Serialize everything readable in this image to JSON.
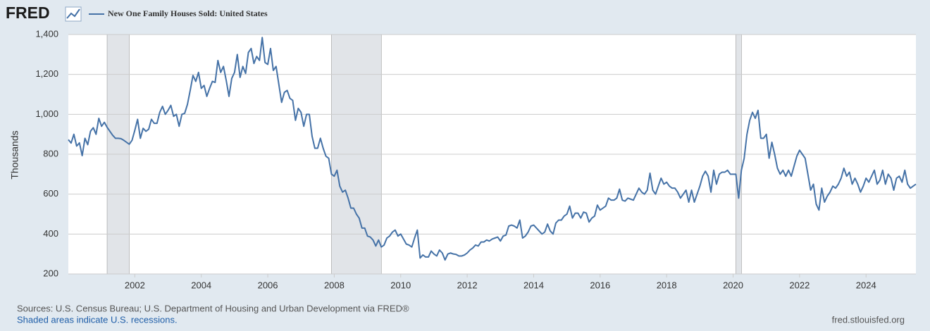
{
  "logo": "FRED",
  "chart_data": {
    "type": "line",
    "series": [
      {
        "name": "New One Family Houses Sold: United States",
        "color": "#4572a7",
        "values": [
          873,
          856,
          900,
          841,
          857,
          793,
          880,
          848,
          915,
          933,
          900,
          980,
          940,
          960,
          935,
          915,
          895,
          880,
          880,
          878,
          870,
          860,
          850,
          870,
          920,
          975,
          880,
          930,
          915,
          925,
          975,
          955,
          955,
          1010,
          1040,
          1000,
          1020,
          1045,
          990,
          1000,
          940,
          1000,
          1005,
          1050,
          1120,
          1195,
          1165,
          1210,
          1130,
          1145,
          1090,
          1130,
          1165,
          1160,
          1270,
          1210,
          1240,
          1170,
          1090,
          1180,
          1210,
          1300,
          1185,
          1240,
          1205,
          1310,
          1330,
          1255,
          1290,
          1270,
          1385,
          1260,
          1250,
          1330,
          1220,
          1240,
          1150,
          1060,
          1110,
          1120,
          1080,
          1070,
          970,
          1030,
          1010,
          940,
          1000,
          1000,
          890,
          830,
          830,
          880,
          830,
          790,
          780,
          700,
          690,
          720,
          640,
          610,
          620,
          580,
          530,
          530,
          500,
          480,
          430,
          430,
          390,
          385,
          370,
          340,
          370,
          335,
          345,
          380,
          390,
          410,
          420,
          390,
          400,
          375,
          350,
          345,
          335,
          380,
          420,
          280,
          295,
          285,
          285,
          315,
          300,
          290,
          320,
          305,
          270,
          300,
          305,
          300,
          298,
          290,
          290,
          295,
          305,
          320,
          330,
          345,
          340,
          360,
          360,
          370,
          365,
          375,
          380,
          385,
          365,
          390,
          395,
          440,
          445,
          440,
          430,
          470,
          380,
          390,
          410,
          440,
          445,
          430,
          415,
          400,
          410,
          450,
          415,
          400,
          455,
          470,
          470,
          490,
          500,
          540,
          480,
          505,
          505,
          480,
          510,
          505,
          460,
          480,
          490,
          545,
          520,
          530,
          540,
          580,
          570,
          570,
          580,
          625,
          570,
          565,
          580,
          575,
          570,
          600,
          630,
          610,
          600,
          620,
          705,
          620,
          600,
          640,
          680,
          650,
          660,
          640,
          630,
          630,
          610,
          580,
          600,
          620,
          560,
          620,
          560,
          600,
          640,
          690,
          715,
          690,
          610,
          720,
          650,
          700,
          710,
          710,
          720,
          700,
          700,
          700,
          580,
          720,
          780,
          900,
          970,
          1010,
          980,
          1020,
          880,
          880,
          900,
          780,
          860,
          800,
          730,
          700,
          720,
          690,
          720,
          690,
          740,
          790,
          820,
          800,
          780,
          700,
          620,
          650,
          550,
          520,
          630,
          560,
          590,
          610,
          640,
          630,
          650,
          680,
          730,
          690,
          710,
          650,
          680,
          650,
          610,
          640,
          680,
          660,
          690,
          720,
          650,
          670,
          720,
          650,
          700,
          680,
          620,
          680,
          690,
          660,
          720,
          650,
          630,
          640,
          650
        ]
      }
    ],
    "x": [
      "2000-01",
      "2000-02",
      "2000-03",
      "2000-04",
      "2000-05",
      "2000-06",
      "2000-07",
      "2000-08",
      "2000-09",
      "2000-10",
      "2000-11",
      "2000-12",
      "2001-01",
      "2001-02",
      "2001-03",
      "2001-04",
      "2001-05",
      "2001-06",
      "2001-07",
      "2001-08",
      "2001-09",
      "2001-10",
      "2001-11",
      "2001-12",
      "2002-01",
      "2002-02",
      "2002-03",
      "2002-04",
      "2002-05",
      "2002-06",
      "2002-07",
      "2002-08",
      "2002-09",
      "2002-10",
      "2002-11",
      "2002-12",
      "2003-01",
      "2003-02",
      "2003-03",
      "2003-04",
      "2003-05",
      "2003-06",
      "2003-07",
      "2003-08",
      "2003-09",
      "2003-10",
      "2003-11",
      "2003-12",
      "2004-01",
      "2004-02",
      "2004-03",
      "2004-04",
      "2004-05",
      "2004-06",
      "2004-07",
      "2004-08",
      "2004-09",
      "2004-10",
      "2004-11",
      "2004-12",
      "2005-01",
      "2005-02",
      "2005-03",
      "2005-04",
      "2005-05",
      "2005-06",
      "2005-07",
      "2005-08",
      "2005-09",
      "2005-10",
      "2005-11",
      "2005-12",
      "2006-01",
      "2006-02",
      "2006-03",
      "2006-04",
      "2006-05",
      "2006-06",
      "2006-07",
      "2006-08",
      "2006-09",
      "2006-10",
      "2006-11",
      "2006-12",
      "2007-01",
      "2007-02",
      "2007-03",
      "2007-04",
      "2007-05",
      "2007-06",
      "2007-07",
      "2007-08",
      "2007-09",
      "2007-10",
      "2007-11",
      "2007-12",
      "2008-01",
      "2008-02",
      "2008-03",
      "2008-04",
      "2008-05",
      "2008-06",
      "2008-07",
      "2008-08",
      "2008-09",
      "2008-10",
      "2008-11",
      "2008-12",
      "2009-01",
      "2009-02",
      "2009-03",
      "2009-04",
      "2009-05",
      "2009-06",
      "2009-07",
      "2009-08",
      "2009-09",
      "2009-10",
      "2009-11",
      "2009-12",
      "2010-01",
      "2010-02",
      "2010-03",
      "2010-04",
      "2010-05",
      "2010-06",
      "2010-07",
      "2010-08",
      "2010-09",
      "2010-10",
      "2010-11",
      "2010-12",
      "2011-01",
      "2011-02",
      "2011-03",
      "2011-04",
      "2011-05",
      "2011-06",
      "2011-07",
      "2011-08",
      "2011-09",
      "2011-10",
      "2011-11",
      "2011-12",
      "2012-01",
      "2012-02",
      "2012-03",
      "2012-04",
      "2012-05",
      "2012-06",
      "2012-07",
      "2012-08",
      "2012-09",
      "2012-10",
      "2012-11",
      "2012-12",
      "2013-01",
      "2013-02",
      "2013-03",
      "2013-04",
      "2013-05",
      "2013-06",
      "2013-07",
      "2013-08",
      "2013-09",
      "2013-10",
      "2013-11",
      "2013-12",
      "2014-01",
      "2014-02",
      "2014-03",
      "2014-04",
      "2014-05",
      "2014-06",
      "2014-07",
      "2014-08",
      "2014-09",
      "2014-10",
      "2014-11",
      "2014-12",
      "2015-01",
      "2015-02",
      "2015-03",
      "2015-04",
      "2015-05",
      "2015-06",
      "2015-07",
      "2015-08",
      "2015-09",
      "2015-10",
      "2015-11",
      "2015-12",
      "2016-01",
      "2016-02",
      "2016-03",
      "2016-04",
      "2016-05",
      "2016-06",
      "2016-07",
      "2016-08",
      "2016-09",
      "2016-10",
      "2016-11",
      "2016-12",
      "2017-01",
      "2017-02",
      "2017-03",
      "2017-04",
      "2017-05",
      "2017-06",
      "2017-07",
      "2017-08",
      "2017-09",
      "2017-10",
      "2017-11",
      "2017-12",
      "2018-01",
      "2018-02",
      "2018-03",
      "2018-04",
      "2018-05",
      "2018-06",
      "2018-07",
      "2018-08",
      "2018-09",
      "2018-10",
      "2018-11",
      "2018-12",
      "2019-01",
      "2019-02",
      "2019-03",
      "2019-04",
      "2019-05",
      "2019-06",
      "2019-07",
      "2019-08",
      "2019-09",
      "2019-10",
      "2019-11",
      "2019-12",
      "2020-01",
      "2020-02",
      "2020-03",
      "2020-04",
      "2020-05",
      "2020-06",
      "2020-07",
      "2020-08",
      "2020-09",
      "2020-10",
      "2020-11",
      "2020-12",
      "2021-01",
      "2021-02",
      "2021-03",
      "2021-04",
      "2021-05",
      "2021-06",
      "2021-07",
      "2021-08",
      "2021-09",
      "2021-10",
      "2021-11",
      "2021-12",
      "2022-01",
      "2022-02",
      "2022-03",
      "2022-04",
      "2022-05",
      "2022-06",
      "2022-07",
      "2022-08",
      "2022-09",
      "2022-10",
      "2022-11",
      "2022-12",
      "2023-01",
      "2023-02",
      "2023-03",
      "2023-04",
      "2023-05",
      "2023-06",
      "2023-07",
      "2023-08",
      "2023-09",
      "2023-10",
      "2023-11",
      "2023-12",
      "2024-01",
      "2024-02",
      "2024-03",
      "2024-04",
      "2024-05",
      "2024-06",
      "2024-07",
      "2024-08",
      "2024-09",
      "2024-10",
      "2024-11",
      "2024-12",
      "2025-01",
      "2025-02",
      "2025-03",
      "2025-04",
      "2025-05",
      "2025-06",
      "2025-07"
    ],
    "xlim": [
      "2000-01",
      "2025-07"
    ],
    "xticks": [
      {
        "value": "2002-01",
        "label": "2002"
      },
      {
        "value": "2004-01",
        "label": "2004"
      },
      {
        "value": "2006-01",
        "label": "2006"
      },
      {
        "value": "2008-01",
        "label": "2008"
      },
      {
        "value": "2010-01",
        "label": "2010"
      },
      {
        "value": "2012-01",
        "label": "2012"
      },
      {
        "value": "2014-01",
        "label": "2014"
      },
      {
        "value": "2016-01",
        "label": "2016"
      },
      {
        "value": "2018-01",
        "label": "2018"
      },
      {
        "value": "2020-01",
        "label": "2020"
      },
      {
        "value": "2022-01",
        "label": "2022"
      },
      {
        "value": "2024-01",
        "label": "2024"
      }
    ],
    "ylim": [
      200,
      1400
    ],
    "yticks": [
      200,
      400,
      600,
      800,
      {
        "value": 1000,
        "label": "1,000"
      },
      {
        "value": 1200,
        "label": "1,200"
      },
      {
        "value": 1400,
        "label": "1,400"
      }
    ],
    "y_label": "Thousands",
    "grid": true,
    "recessions": [
      [
        "2001-03",
        "2001-11"
      ],
      [
        "2007-12",
        "2009-06"
      ],
      [
        "2020-02",
        "2020-04"
      ]
    ]
  },
  "footer": {
    "source": "Sources: U.S. Census Bureau; U.S. Department of Housing and Urban Development via FRED®",
    "note": "Shaded areas indicate U.S. recessions.",
    "url": "fred.stlouisfed.org"
  }
}
